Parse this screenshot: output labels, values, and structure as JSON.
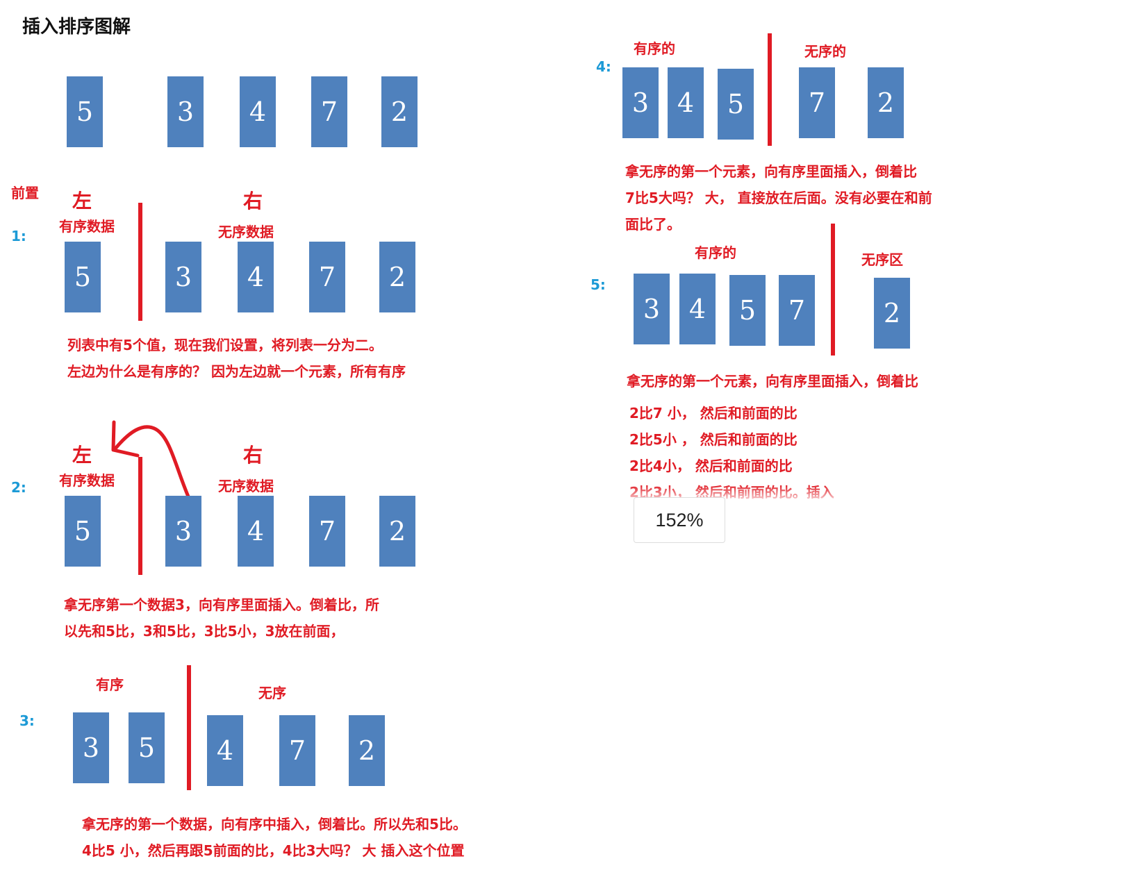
{
  "title": "插入排序图解",
  "initial": {
    "cards": [
      "5",
      "3",
      "4",
      "7",
      "2"
    ]
  },
  "pre_label": "前置",
  "step1": {
    "num": "1:",
    "left_big": "左",
    "right_big": "右",
    "left_label": "有序数据",
    "right_label": "无序数据",
    "cards": [
      "5",
      "3",
      "4",
      "7",
      "2"
    ],
    "text1": "列表中有5个值，现在我们设置，将列表一分为二。",
    "text2": "左边为什么是有序的？ 因为左边就一个元素，所有有序"
  },
  "step2": {
    "num": "2:",
    "left_big": "左",
    "right_big": "右",
    "left_label": "有序数据",
    "right_label": "无序数据",
    "cards": [
      "5",
      "3",
      "4",
      "7",
      "2"
    ],
    "text1": "拿无序第一个数据3，向有序里面插入。倒着比，所",
    "text2": "以先和5比，3和5比，3比5小，3放在前面，"
  },
  "step3": {
    "num": "3:",
    "left_label": "有序",
    "right_label": "无序",
    "cards": [
      "3",
      "5",
      "4",
      "7",
      "2"
    ],
    "text1": "拿无序的第一个数据，向有序中插入，倒着比。所以先和5比。",
    "text2": "4比5 小，然后再跟5前面的比，4比3大吗？ 大 插入这个位置"
  },
  "step4": {
    "num": "4:",
    "left_label": "有序的",
    "right_label": "无序的",
    "cards": [
      "3",
      "4",
      "5",
      "7",
      "2"
    ],
    "text1": "拿无序的第一个元素，向有序里面插入，倒着比",
    "text2": "7比5大吗？ 大， 直接放在后面。没有必要在和前",
    "text3": "面比了。"
  },
  "step5": {
    "num": "5:",
    "left_label": "有序的",
    "right_label": "无序区",
    "cards": [
      "3",
      "4",
      "5",
      "7",
      "2"
    ],
    "text1": "拿无序的第一个元素，向有序里面插入，倒着比",
    "text2": "2比7 小， 然后和前面的比",
    "text3": "2比5小  ， 然后和前面的比",
    "text4": "2比4小， 然后和前面的比",
    "text5": "2比3小， 然后和前面的比。插入"
  },
  "zoom_label": "152%",
  "colors": {
    "card": "#4f81bd",
    "accent_red": "#e01b24",
    "step_blue": "#1c9ad6"
  }
}
